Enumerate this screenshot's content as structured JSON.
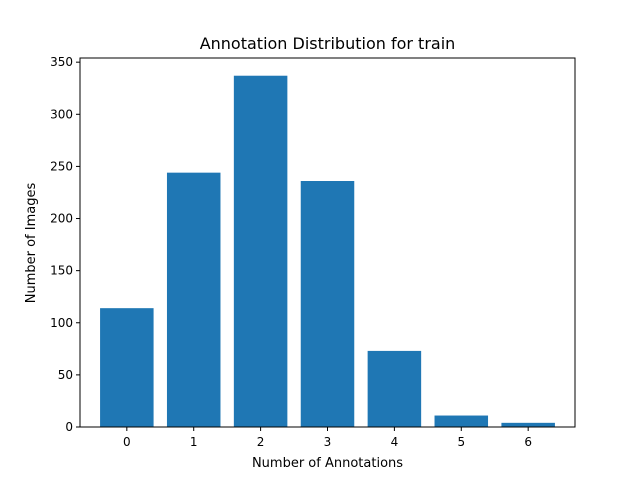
{
  "chart_data": {
    "type": "bar",
    "title": "Annotation Distribution for train",
    "xlabel": "Number of Annotations",
    "ylabel": "Number of Images",
    "categories": [
      "0",
      "1",
      "2",
      "3",
      "4",
      "5",
      "6"
    ],
    "x": [
      0,
      1,
      2,
      3,
      4,
      5,
      6
    ],
    "values": [
      114,
      244,
      337,
      236,
      73,
      11,
      4
    ],
    "xlim": [
      -0.7,
      6.7
    ],
    "ylim": [
      0,
      354
    ],
    "yticks": [
      0,
      50,
      100,
      150,
      200,
      250,
      300,
      350
    ],
    "xticks": [
      0,
      1,
      2,
      3,
      4,
      5,
      6
    ],
    "bar_color": "#1f77b4",
    "grid": false,
    "legend": "none"
  }
}
